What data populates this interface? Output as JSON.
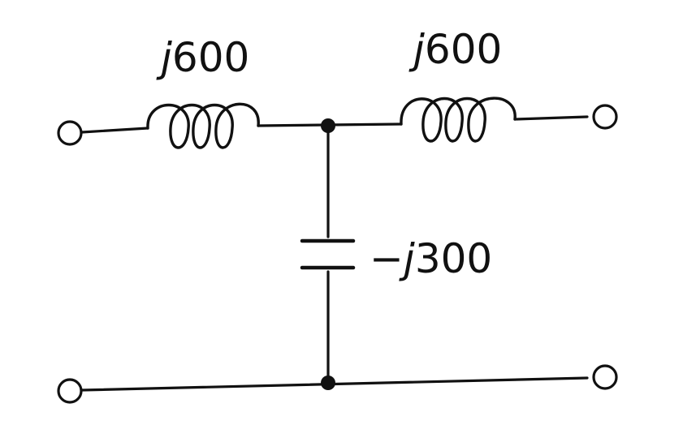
{
  "diagram": {
    "labels": {
      "inductor_left": {
        "sign": "",
        "unit": "j",
        "value": "600"
      },
      "inductor_right": {
        "sign": "",
        "unit": "j",
        "value": "600"
      },
      "capacitor": {
        "sign": "−",
        "unit": "j",
        "value": "300"
      }
    },
    "colors": {
      "line": "#111111",
      "background": "#ffffff"
    }
  }
}
